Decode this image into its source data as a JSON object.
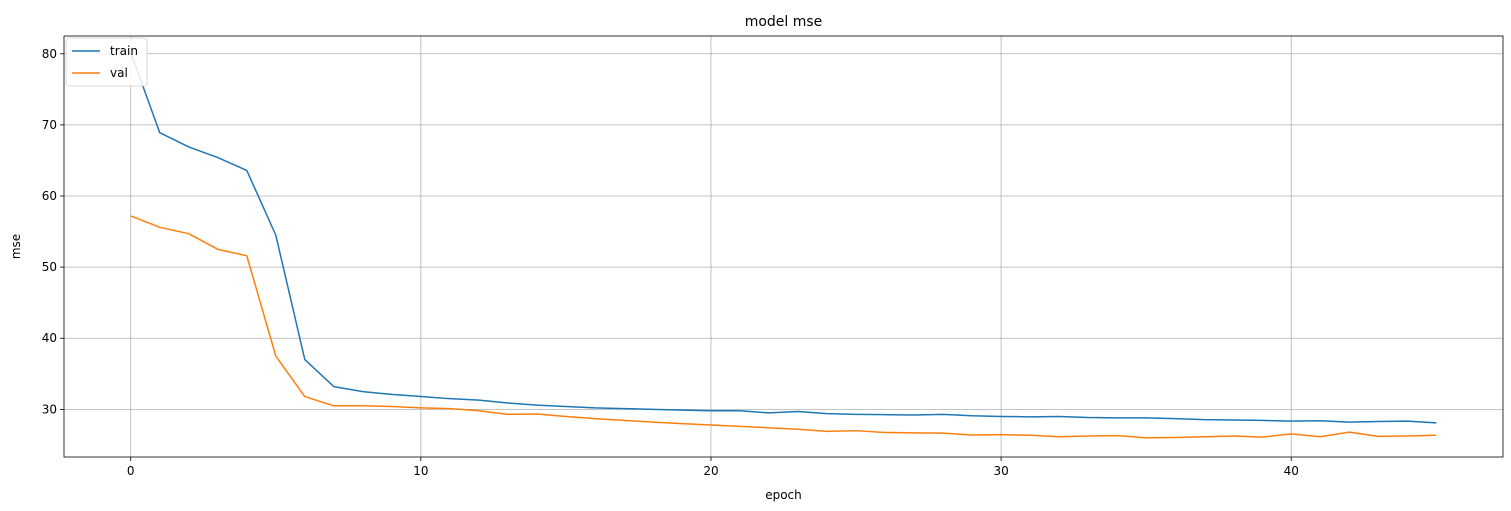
{
  "chart_data": {
    "type": "line",
    "title": "model mse",
    "xlabel": "epoch",
    "ylabel": "mse",
    "xlim": [
      -2.3,
      47.3
    ],
    "ylim": [
      23.3,
      82.5
    ],
    "xticks": [
      0,
      10,
      20,
      30,
      40
    ],
    "yticks": [
      30,
      40,
      50,
      60,
      70,
      80
    ],
    "grid": true,
    "legend_position": "top-left",
    "x": [
      0,
      1,
      2,
      3,
      4,
      5,
      6,
      7,
      8,
      9,
      10,
      11,
      12,
      13,
      14,
      15,
      16,
      17,
      18,
      19,
      20,
      21,
      22,
      23,
      24,
      25,
      26,
      27,
      28,
      29,
      30,
      31,
      32,
      33,
      34,
      35,
      36,
      37,
      38,
      39,
      40,
      41,
      42,
      43,
      44,
      45
    ],
    "series": [
      {
        "name": "train",
        "color": "#1f77b4",
        "values": [
          80.2,
          68.9,
          66.9,
          65.4,
          63.6,
          54.5,
          37.0,
          33.2,
          32.5,
          32.1,
          31.8,
          31.5,
          31.3,
          30.9,
          30.6,
          30.4,
          30.2,
          30.1,
          30.0,
          29.9,
          29.8,
          29.8,
          29.5,
          29.7,
          29.4,
          29.3,
          29.25,
          29.2,
          29.3,
          29.1,
          29.0,
          28.95,
          29.0,
          28.85,
          28.8,
          28.8,
          28.7,
          28.55,
          28.5,
          28.45,
          28.35,
          28.4,
          28.2,
          28.3,
          28.35,
          28.1
        ]
      },
      {
        "name": "val",
        "color": "#ff7f0e",
        "values": [
          57.2,
          55.6,
          54.7,
          52.5,
          51.6,
          37.5,
          31.8,
          30.5,
          30.5,
          30.4,
          30.2,
          30.1,
          29.8,
          29.3,
          29.35,
          29.0,
          28.7,
          28.45,
          28.2,
          28.0,
          27.8,
          27.6,
          27.4,
          27.2,
          26.9,
          27.0,
          26.75,
          26.7,
          26.65,
          26.4,
          26.45,
          26.35,
          26.15,
          26.25,
          26.3,
          26.0,
          26.05,
          26.15,
          26.25,
          26.1,
          26.55,
          26.15,
          26.8,
          26.2,
          26.25,
          26.35
        ]
      }
    ]
  }
}
